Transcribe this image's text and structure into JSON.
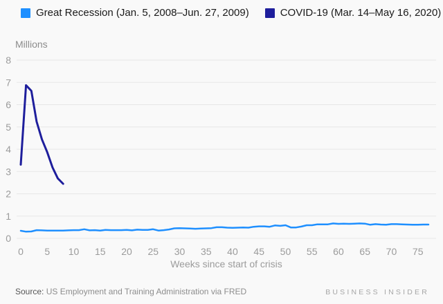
{
  "colors": {
    "background": "#f9f9f9",
    "gridline": "#e7e7e7",
    "axis_tick_text": "#9b9b9b",
    "axis_title_text": "#9b9b9b",
    "units_label_text": "#8c8c8c",
    "great_recession_blue": "#1e8fff",
    "covid_navy": "#1e1e9c"
  },
  "chart_data": {
    "type": "line",
    "title": "",
    "ylabel": "Millions",
    "xlabel": "Weeks since start of crisis",
    "ylim": [
      0,
      8
    ],
    "xlim": [
      0,
      77
    ],
    "yticks": [
      0,
      1,
      2,
      3,
      4,
      5,
      6,
      7,
      8
    ],
    "xticks": [
      0,
      5,
      10,
      15,
      20,
      25,
      30,
      35,
      40,
      45,
      50,
      55,
      60,
      65,
      70,
      75
    ],
    "grid": "horizontal",
    "legend_position": "top-left",
    "x_unit": "weeks since start of crisis",
    "y_unit": "millions of initial unemployment claims",
    "series": [
      {
        "name": "Great Recession (Jan. 5, 2008–Jun. 27, 2009)",
        "color": "#1e8fff",
        "x_start_week": 0,
        "values": [
          0.34,
          0.3,
          0.31,
          0.37,
          0.36,
          0.35,
          0.35,
          0.35,
          0.35,
          0.36,
          0.37,
          0.37,
          0.41,
          0.36,
          0.37,
          0.35,
          0.38,
          0.37,
          0.37,
          0.37,
          0.38,
          0.36,
          0.39,
          0.38,
          0.38,
          0.41,
          0.35,
          0.37,
          0.4,
          0.45,
          0.46,
          0.45,
          0.44,
          0.43,
          0.44,
          0.45,
          0.46,
          0.5,
          0.5,
          0.48,
          0.47,
          0.48,
          0.49,
          0.48,
          0.52,
          0.54,
          0.54,
          0.52,
          0.58,
          0.56,
          0.59,
          0.49,
          0.49,
          0.53,
          0.59,
          0.59,
          0.63,
          0.63,
          0.63,
          0.67,
          0.65,
          0.66,
          0.65,
          0.66,
          0.67,
          0.66,
          0.61,
          0.64,
          0.62,
          0.61,
          0.64,
          0.64,
          0.63,
          0.62,
          0.61,
          0.61,
          0.62,
          0.62
        ]
      },
      {
        "name": "COVID-19 (Mar. 14–May 16, 2020)",
        "color": "#1e1e9c",
        "x_start_week": 0,
        "values": [
          3.31,
          6.87,
          6.62,
          5.24,
          4.44,
          3.87,
          3.18,
          2.69,
          2.45
        ]
      }
    ]
  },
  "footer": {
    "source_label": "Source:",
    "source": "US Employment and Training Administration via FRED",
    "brand": "BUSINESS INSIDER"
  }
}
